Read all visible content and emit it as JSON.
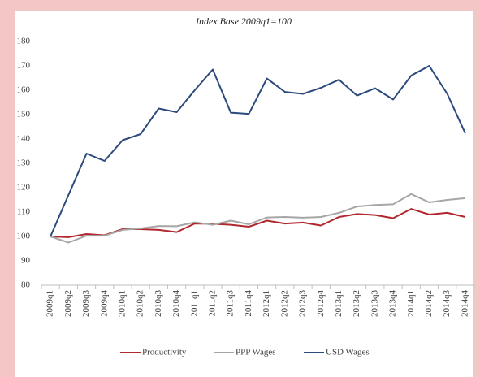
{
  "chart_data": {
    "type": "line",
    "subtitle": "Index Base 2009q1=100",
    "categories": [
      "2009q1",
      "2009q2",
      "2009q3",
      "2009q4",
      "2010q1",
      "2010q2",
      "2010q3",
      "2010q4",
      "2011q1",
      "2011q2",
      "2011q3",
      "2011q4",
      "2012q1",
      "2012q2",
      "2012q3",
      "2012q4",
      "2013q1",
      "2013q2",
      "2013q3",
      "2013q4",
      "2014q1",
      "2014q2",
      "2014q3",
      "2014q4"
    ],
    "series": [
      {
        "name": "Productivity",
        "color": "#b0272d",
        "values": [
          100,
          99.7,
          101,
          100.5,
          103,
          103,
          102.7,
          101.8,
          105.3,
          105.2,
          104.8,
          104,
          106.5,
          105.3,
          105.7,
          104.5,
          108,
          109.2,
          108.8,
          107.5,
          111.3,
          109,
          109.7,
          108
        ]
      },
      {
        "name": "PPP Wages",
        "color": "#a6a6a6",
        "values": [
          100,
          97.5,
          100.3,
          100.3,
          102.7,
          103.3,
          104.3,
          104.2,
          105.8,
          104.8,
          106.5,
          105,
          107.8,
          108,
          107.7,
          108,
          109.7,
          112.3,
          112.9,
          113.2,
          117.4,
          114,
          115,
          115.7
        ]
      },
      {
        "name": "USD Wages",
        "color": "#2c4a7c",
        "values": [
          100,
          117,
          134,
          131,
          139.5,
          142,
          152.5,
          151,
          160,
          168.5,
          150.8,
          150.3,
          164.8,
          159.3,
          158.5,
          161,
          164.3,
          157.8,
          160.8,
          156.2,
          166,
          170,
          158.5,
          142.3
        ]
      }
    ],
    "ylim": [
      80,
      180
    ],
    "yticks": [
      80,
      90,
      100,
      110,
      120,
      130,
      140,
      150,
      160,
      170,
      180
    ],
    "grid": false,
    "legend": "bottom"
  }
}
